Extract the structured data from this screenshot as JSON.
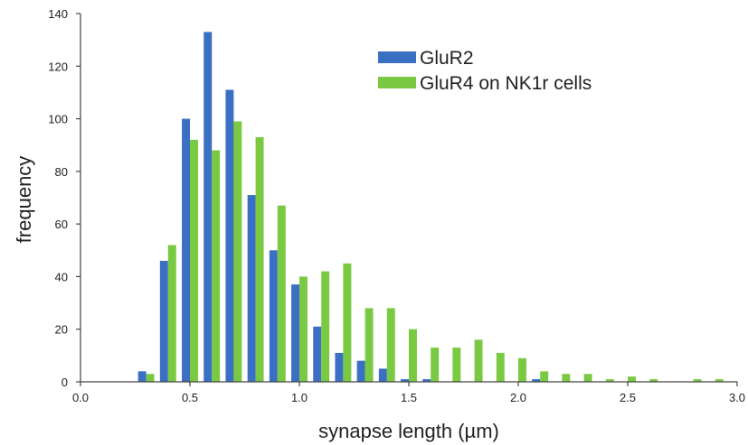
{
  "chart_data": {
    "type": "bar",
    "xlabel": "synapse length (µm)",
    "ylabel": "frequency",
    "xlim": [
      0,
      3.0
    ],
    "ylim": [
      0,
      140
    ],
    "xticks": [
      "0.0",
      "0.5",
      "1.0",
      "1.5",
      "2.0",
      "2.5",
      "3.0"
    ],
    "yticks": [
      "0",
      "20",
      "40",
      "60",
      "80",
      "100",
      "120",
      "140"
    ],
    "bin_width": 0.1,
    "categories": [
      0.3,
      0.4,
      0.5,
      0.6,
      0.7,
      0.8,
      0.9,
      1.0,
      1.1,
      1.2,
      1.3,
      1.4,
      1.5,
      1.6,
      1.7,
      1.8,
      1.9,
      2.0,
      2.1,
      2.2,
      2.3,
      2.4,
      2.5,
      2.6,
      2.7,
      2.8,
      2.9
    ],
    "series": [
      {
        "name": "GluR2",
        "color": "#3a6fc4",
        "values": [
          4,
          46,
          100,
          133,
          111,
          71,
          50,
          37,
          21,
          11,
          8,
          5,
          1,
          1,
          0,
          0,
          0,
          0,
          1,
          0,
          0,
          0,
          0,
          0,
          0,
          0,
          0
        ]
      },
      {
        "name": "GluR4 on NK1r cells",
        "color": "#7ac943",
        "values": [
          3,
          52,
          92,
          88,
          99,
          93,
          67,
          40,
          42,
          45,
          28,
          28,
          20,
          13,
          13,
          16,
          11,
          9,
          4,
          3,
          3,
          1,
          2,
          1,
          0,
          1,
          1
        ]
      }
    ],
    "legend_position": "top-right",
    "grid": false
  }
}
